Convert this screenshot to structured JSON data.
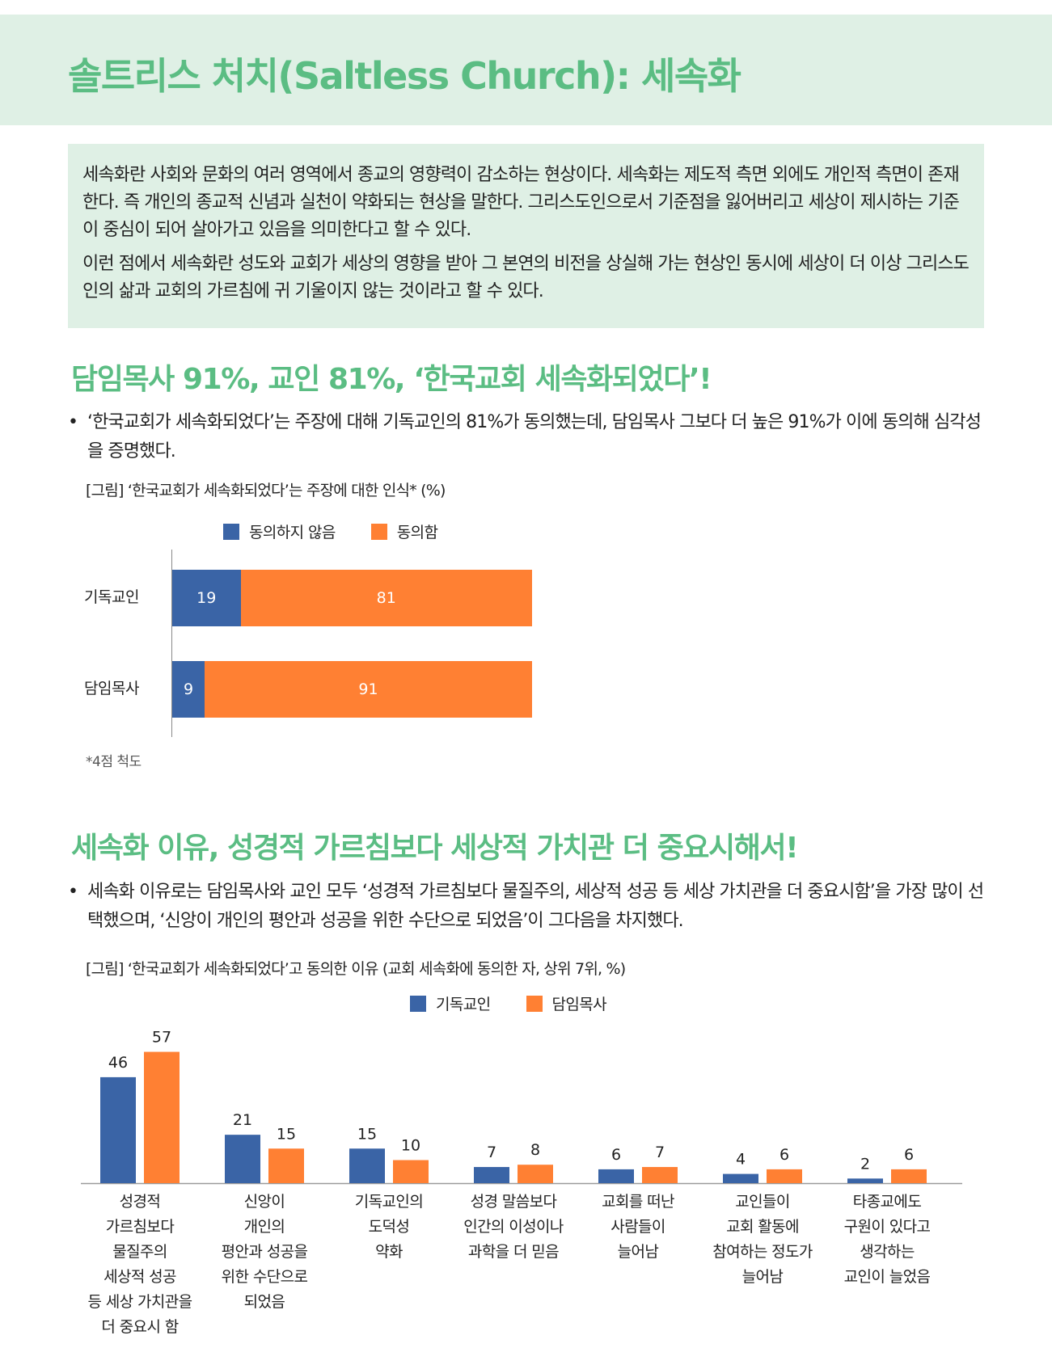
{
  "header": {
    "title": "솔트리스 처치(Saltless Church): 세속화"
  },
  "intro": {
    "p1": "세속화란 사회와 문화의 여러 영역에서 종교의 영향력이 감소하는 현상이다. 세속화는 제도적 측면 외에도 개인적 측면이 존재한다. 즉 개인의 종교적 신념과 실천이 약화되는 현상을 말한다. 그리스도인으로서 기준점을 잃어버리고 세상이 제시하는 기준이 중심이 되어 살아가고 있음을 의미한다고 할 수 있다.",
    "p2": "이런 점에서 세속화란 성도와 교회가 세상의 영향을 받아 그 본연의 비전을 상실해 가는 현상인 동시에 세상이 더 이상 그리스도인의 삶과 교회의 가르침에 귀 기울이지 않는 것이라고 할 수 있다."
  },
  "section1": {
    "title": "담임목사 91%, 교인 81%, ‘한국교회 세속화되었다’!",
    "bullet": "‘한국교회가 세속화되었다’는 주장에 대해 기독교인의 81%가 동의했는데, 담임목사 그보다 더 높은 91%가 이에 동의해 심각성을 증명했다.",
    "caption": "[그림] ‘한국교회가 세속화되었다’는 주장에 대한 인식* (%)",
    "footnote": "*4점 척도"
  },
  "section2": {
    "title": "세속화 이유, 성경적 가르침보다 세상적 가치관 더 중요시해서!",
    "bullet": "세속화 이유로는 담임목사와 교인 모두 ‘성경적 가르침보다 물질주의, 세상적 성공 등 세상 가치관을 더 중요시함’을 가장 많이 선택했으며, ‘신앙이 개인의 평안과 성공을 위한 수단으로 되었음’이 그다음을 차지했다.",
    "caption": "[그림] ‘한국교회가 세속화되었다’고 동의한 이유 (교회 세속화에 동의한 자, 상위 7위, %)"
  },
  "colors": {
    "blue": "#3a64a6",
    "orange": "#ff8033",
    "green": "#5bbd83"
  },
  "chart_data": [
    {
      "type": "bar",
      "orientation": "horizontal",
      "stacked": true,
      "categories": [
        "기독교인",
        "담임목사"
      ],
      "series": [
        {
          "name": "동의하지 않음",
          "values": [
            19,
            9
          ]
        },
        {
          "name": "동의함",
          "values": [
            81,
            91
          ]
        }
      ],
      "legend": "top"
    },
    {
      "type": "bar",
      "orientation": "vertical",
      "categories": [
        "성경적 가르침보다 물질주의 세상적 성공 등 세상 가치관을 더 중요시 함",
        "신앙이 개인의 평안과 성공을 위한 수단으로 되었음",
        "기독교인의 도덕성 약화",
        "성경 말씀보다 인간의 이성이나 과학을 더 믿음",
        "교회를 떠난 사람들이 늘어남",
        "교인들이 교회 활동에 참여하는 정도가 늘어남",
        "타종교에도 구원이 있다고 생각하는 교인이 늘었음"
      ],
      "category_lines": [
        [
          "성경적",
          "가르침보다",
          "물질주의",
          "세상적 성공",
          "등 세상 가치관을",
          "더 중요시 함"
        ],
        [
          "신앙이",
          "개인의",
          "평안과 성공을",
          "위한 수단으로",
          "되었음"
        ],
        [
          "기독교인의",
          "도덕성",
          "약화"
        ],
        [
          "성경 말씀보다",
          "인간의 이성이나",
          "과학을 더 믿음"
        ],
        [
          "교회를 떠난",
          "사람들이",
          "늘어남"
        ],
        [
          "교인들이",
          "교회 활동에",
          "참여하는 정도가",
          "늘어남"
        ],
        [
          "타종교에도",
          "구원이 있다고",
          "생각하는",
          "교인이 늘었음"
        ]
      ],
      "series": [
        {
          "name": "기독교인",
          "values": [
            46,
            21,
            15,
            7,
            6,
            4,
            2
          ]
        },
        {
          "name": "담임목사",
          "values": [
            57,
            15,
            10,
            8,
            7,
            6,
            6
          ]
        }
      ],
      "legend": "top"
    }
  ]
}
